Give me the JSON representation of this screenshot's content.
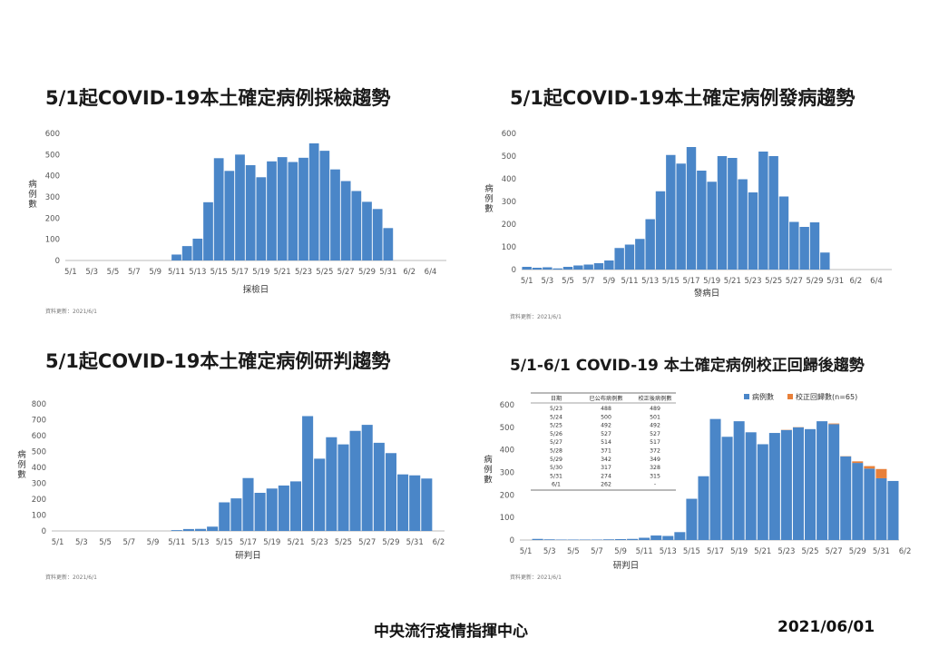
{
  "footer": {
    "org": "中央流行疫情指揮中心",
    "date": "2021/06/01"
  },
  "colors": {
    "bar": "#4a86c8",
    "correction": "#e8803a",
    "axis": "#bbbbbb",
    "text": "#555555"
  },
  "chart_data": [
    {
      "type": "bar",
      "title": "5/1起COVID-19本土確定病例採檢趨勢",
      "xlabel": "採檢日",
      "ylabel": "病例數",
      "ylim": [
        0,
        600
      ],
      "yticks": [
        0,
        100,
        200,
        300,
        400,
        500,
        600
      ],
      "xticks": [
        "5/1",
        "5/3",
        "5/5",
        "5/7",
        "5/9",
        "5/11",
        "5/13",
        "5/15",
        "5/17",
        "5/19",
        "5/21",
        "5/23",
        "5/25",
        "5/27",
        "5/29",
        "5/31",
        "6/2",
        "6/4"
      ],
      "source": "資料更新：2021/6/1",
      "categories": [
        "5/1",
        "5/2",
        "5/3",
        "5/4",
        "5/5",
        "5/6",
        "5/7",
        "5/8",
        "5/9",
        "5/10",
        "5/11",
        "5/12",
        "5/13",
        "5/14",
        "5/15",
        "5/16",
        "5/17",
        "5/18",
        "5/19",
        "5/20",
        "5/21",
        "5/22",
        "5/23",
        "5/24",
        "5/25",
        "5/26",
        "5/27",
        "5/28",
        "5/29",
        "5/30",
        "5/31",
        "6/1",
        "6/2",
        "6/3",
        "6/4",
        "6/5"
      ],
      "values": [
        0,
        0,
        0,
        0,
        0,
        0,
        0,
        0,
        0,
        0,
        28,
        68,
        103,
        275,
        483,
        423,
        500,
        450,
        393,
        468,
        488,
        465,
        485,
        553,
        518,
        430,
        375,
        328,
        277,
        243,
        153,
        0,
        0,
        0,
        0,
        0
      ]
    },
    {
      "type": "bar",
      "title": "5/1起COVID-19本土確定病例發病趨勢",
      "xlabel": "發病日",
      "ylabel": "病例數",
      "ylim": [
        0,
        600
      ],
      "yticks": [
        0,
        100,
        200,
        300,
        400,
        500,
        600
      ],
      "xticks": [
        "5/1",
        "5/3",
        "5/5",
        "5/7",
        "5/9",
        "5/11",
        "5/13",
        "5/15",
        "5/17",
        "5/19",
        "5/21",
        "5/23",
        "5/25",
        "5/27",
        "5/29",
        "5/31",
        "6/2",
        "6/4"
      ],
      "source": "資料更新：2021/6/1",
      "categories": [
        "5/1",
        "5/2",
        "5/3",
        "5/4",
        "5/5",
        "5/6",
        "5/7",
        "5/8",
        "5/9",
        "5/10",
        "5/11",
        "5/12",
        "5/13",
        "5/14",
        "5/15",
        "5/16",
        "5/17",
        "5/18",
        "5/19",
        "5/20",
        "5/21",
        "5/22",
        "5/23",
        "5/24",
        "5/25",
        "5/26",
        "5/27",
        "5/28",
        "5/29",
        "5/30",
        "5/31",
        "6/1",
        "6/2",
        "6/3",
        "6/4",
        "6/5"
      ],
      "values": [
        12,
        8,
        10,
        5,
        12,
        18,
        22,
        28,
        40,
        95,
        110,
        135,
        222,
        345,
        505,
        467,
        540,
        436,
        387,
        500,
        492,
        398,
        340,
        520,
        500,
        322,
        210,
        188,
        208,
        75,
        0,
        0,
        0,
        0,
        0,
        0
      ]
    },
    {
      "type": "bar",
      "title": "5/1起COVID-19本土確定病例研判趨勢",
      "xlabel": "研判日",
      "ylabel": "病例數",
      "ylim": [
        0,
        800
      ],
      "yticks": [
        0,
        100,
        200,
        300,
        400,
        500,
        600,
        700,
        800
      ],
      "xticks": [
        "5/1",
        "5/3",
        "5/5",
        "5/7",
        "5/9",
        "5/11",
        "5/13",
        "5/15",
        "5/17",
        "5/19",
        "5/21",
        "5/23",
        "5/25",
        "5/27",
        "5/29",
        "5/31",
        "6/2"
      ],
      "source": "資料更新：2021/6/1",
      "categories": [
        "5/1",
        "5/2",
        "5/3",
        "5/4",
        "5/5",
        "5/6",
        "5/7",
        "5/8",
        "5/9",
        "5/10",
        "5/11",
        "5/12",
        "5/13",
        "5/14",
        "5/15",
        "5/16",
        "5/17",
        "5/18",
        "5/19",
        "5/20",
        "5/21",
        "5/22",
        "5/23",
        "5/24",
        "5/25",
        "5/26",
        "5/27",
        "5/28",
        "5/29",
        "5/30",
        "5/31",
        "6/1",
        "6/2"
      ],
      "values": [
        0,
        0,
        0,
        0,
        0,
        0,
        0,
        0,
        0,
        0,
        5,
        12,
        13,
        27,
        180,
        205,
        333,
        240,
        267,
        286,
        312,
        723,
        455,
        590,
        545,
        630,
        668,
        555,
        490,
        356,
        350,
        330,
        0
      ]
    },
    {
      "type": "bar",
      "title": "5/1-6/1 COVID-19 本土確定病例校正回歸後趨勢",
      "xlabel": "研判日",
      "ylabel": "病例數",
      "ylim": [
        0,
        600
      ],
      "yticks": [
        0,
        100,
        200,
        300,
        400,
        500,
        600
      ],
      "xticks": [
        "5/1",
        "5/3",
        "5/5",
        "5/7",
        "5/9",
        "5/11",
        "5/13",
        "5/15",
        "5/17",
        "5/19",
        "5/21",
        "5/23",
        "5/25",
        "5/27",
        "5/29",
        "5/31",
        "6/2"
      ],
      "source": "資料更新：2021/6/1",
      "legend": [
        "病例數",
        "校正回歸數(n=65)"
      ],
      "legend_position": "top-right",
      "categories": [
        "5/1",
        "5/2",
        "5/3",
        "5/4",
        "5/5",
        "5/6",
        "5/7",
        "5/8",
        "5/9",
        "5/10",
        "5/11",
        "5/12",
        "5/13",
        "5/14",
        "5/15",
        "5/16",
        "5/17",
        "5/18",
        "5/19",
        "5/20",
        "5/21",
        "5/22",
        "5/23",
        "5/24",
        "5/25",
        "5/26",
        "5/27",
        "5/28",
        "5/29",
        "5/30",
        "5/31",
        "6/1"
      ],
      "series": [
        {
          "name": "病例數",
          "values": [
            0,
            5,
            3,
            2,
            2,
            2,
            2,
            3,
            4,
            5,
            10,
            20,
            18,
            35,
            183,
            283,
            537,
            458,
            527,
            478,
            425,
            475,
            488,
            500,
            492,
            527,
            514,
            371,
            342,
            317,
            274,
            262
          ]
        },
        {
          "name": "校正回歸數(n=65)",
          "values": [
            0,
            0,
            0,
            0,
            0,
            0,
            0,
            0,
            0,
            0,
            0,
            0,
            0,
            0,
            0,
            0,
            0,
            0,
            0,
            0,
            0,
            0,
            1,
            1,
            0,
            0,
            3,
            1,
            7,
            11,
            41,
            0
          ]
        }
      ],
      "table": {
        "headers": [
          "日期",
          "已公布病例數",
          "校正後病例數"
        ],
        "rows": [
          [
            "5/23",
            "488",
            "489"
          ],
          [
            "5/24",
            "500",
            "501"
          ],
          [
            "5/25",
            "492",
            "492"
          ],
          [
            "5/26",
            "527",
            "527"
          ],
          [
            "5/27",
            "514",
            "517"
          ],
          [
            "5/28",
            "371",
            "372"
          ],
          [
            "5/29",
            "342",
            "349"
          ],
          [
            "5/30",
            "317",
            "328"
          ],
          [
            "5/31",
            "274",
            "315"
          ],
          [
            "6/1",
            "262",
            "-"
          ]
        ]
      }
    }
  ]
}
